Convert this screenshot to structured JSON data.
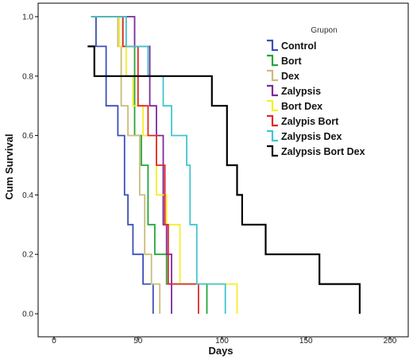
{
  "chart_data": {
    "type": "line",
    "step": true,
    "xlabel": "Days",
    "ylabel": "Cum Survival",
    "xlim": [
      0,
      200
    ],
    "ylim": [
      0,
      1.0
    ],
    "x_ticks": [
      "0",
      "50",
      "100",
      "150",
      "200"
    ],
    "y_ticks": [
      "0.0",
      "0.2",
      "0.4",
      "0.6",
      "0.8",
      "1.0"
    ],
    "grid": false,
    "legend_title": "Grupon",
    "legend_position": "top-right",
    "series": [
      {
        "name": "Control",
        "color": "#3a4fb8",
        "points": [
          [
            22,
            1.0
          ],
          [
            25,
            0.9
          ],
          [
            31,
            0.7
          ],
          [
            38,
            0.6
          ],
          [
            42,
            0.4
          ],
          [
            44,
            0.3
          ],
          [
            47,
            0.2
          ],
          [
            53,
            0.1
          ],
          [
            59,
            0.0
          ]
        ]
      },
      {
        "name": "Bort",
        "color": "#22a838",
        "points": [
          [
            22,
            1.0
          ],
          [
            41,
            0.9
          ],
          [
            48,
            0.6
          ],
          [
            52,
            0.5
          ],
          [
            56,
            0.3
          ],
          [
            60,
            0.2
          ],
          [
            67,
            0.1
          ],
          [
            91,
            0.0
          ]
        ]
      },
      {
        "name": "Dex",
        "color": "#c9bd7a",
        "points": [
          [
            22,
            1.0
          ],
          [
            38,
            0.9
          ],
          [
            40,
            0.7
          ],
          [
            44,
            0.6
          ],
          [
            51,
            0.4
          ],
          [
            54,
            0.2
          ],
          [
            58,
            0.1
          ],
          [
            63,
            0.0
          ]
        ]
      },
      {
        "name": "Zalypsis",
        "color": "#7b2a9a",
        "points": [
          [
            22,
            1.0
          ],
          [
            48,
            0.9
          ],
          [
            57,
            0.7
          ],
          [
            61,
            0.6
          ],
          [
            65,
            0.3
          ],
          [
            67,
            0.2
          ],
          [
            70,
            0.0
          ]
        ]
      },
      {
        "name": "Bort Dex",
        "color": "#f5ee2a",
        "points": [
          [
            22,
            1.0
          ],
          [
            39,
            0.9
          ],
          [
            43,
            0.8
          ],
          [
            47,
            0.7
          ],
          [
            53,
            0.6
          ],
          [
            61,
            0.4
          ],
          [
            67,
            0.3
          ],
          [
            75,
            0.1
          ],
          [
            109,
            0.0
          ]
        ]
      },
      {
        "name": "Zalypis Bort",
        "color": "#e02828",
        "points": [
          [
            22,
            1.0
          ],
          [
            41,
            0.9
          ],
          [
            50,
            0.7
          ],
          [
            56,
            0.6
          ],
          [
            61,
            0.5
          ],
          [
            66,
            0.3
          ],
          [
            68,
            0.1
          ],
          [
            86,
            0.0
          ]
        ]
      },
      {
        "name": "Zalypsis Dex",
        "color": "#3fc6cc",
        "points": [
          [
            22,
            1.0
          ],
          [
            43,
            0.9
          ],
          [
            56,
            0.8
          ],
          [
            65,
            0.7
          ],
          [
            70,
            0.6
          ],
          [
            79,
            0.5
          ],
          [
            81,
            0.3
          ],
          [
            85,
            0.1
          ],
          [
            102,
            0.0
          ]
        ]
      },
      {
        "name": "Zalypsis Bort Dex",
        "color": "#000000",
        "points": [
          [
            20,
            0.9
          ],
          [
            24,
            0.8
          ],
          [
            94,
            0.7
          ],
          [
            103,
            0.5
          ],
          [
            109,
            0.4
          ],
          [
            112,
            0.3
          ],
          [
            126,
            0.2
          ],
          [
            158,
            0.1
          ],
          [
            182,
            0.0
          ]
        ]
      }
    ]
  }
}
